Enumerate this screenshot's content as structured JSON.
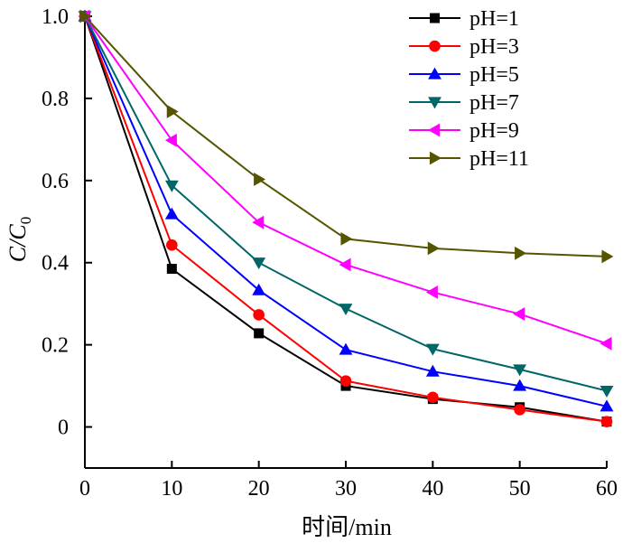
{
  "chart_data": {
    "type": "line",
    "x": [
      0,
      10,
      20,
      30,
      40,
      50,
      60
    ],
    "xlabel": "时间/min",
    "ylabel_main": "C/C",
    "ylabel_sub": "0",
    "xlim": [
      0,
      60
    ],
    "ylim": [
      -0.1,
      1.0
    ],
    "x_ticks": [
      0,
      10,
      20,
      30,
      40,
      50,
      60
    ],
    "y_ticks": [
      0,
      0.2,
      0.4,
      0.6,
      0.8,
      1.0
    ],
    "y_tick_labels": [
      "0",
      "0.2",
      "0.4",
      "0.6",
      "0.8",
      "1.0"
    ],
    "grid": false,
    "legend_position": "top-right",
    "series": [
      {
        "name": "pH=1",
        "color": "#000000",
        "marker": "square",
        "values": [
          1.0,
          0.385,
          0.228,
          0.1,
          0.068,
          0.048,
          0.013
        ]
      },
      {
        "name": "pH=3",
        "color": "#ff0000",
        "marker": "circle",
        "values": [
          1.0,
          0.443,
          0.273,
          0.112,
          0.072,
          0.042,
          0.013
        ]
      },
      {
        "name": "pH=5",
        "color": "#0000ff",
        "marker": "triangle-up",
        "values": [
          1.0,
          0.518,
          0.333,
          0.188,
          0.135,
          0.1,
          0.05
        ]
      },
      {
        "name": "pH=7",
        "color": "#006666",
        "marker": "triangle-down",
        "values": [
          1.0,
          0.588,
          0.4,
          0.288,
          0.19,
          0.14,
          0.088
        ]
      },
      {
        "name": "pH=9",
        "color": "#ff00ff",
        "marker": "triangle-left",
        "values": [
          1.0,
          0.698,
          0.498,
          0.395,
          0.328,
          0.275,
          0.203
        ]
      },
      {
        "name": "pH=11",
        "color": "#555500",
        "marker": "triangle-right",
        "values": [
          1.0,
          0.768,
          0.603,
          0.458,
          0.435,
          0.423,
          0.415
        ]
      }
    ]
  }
}
